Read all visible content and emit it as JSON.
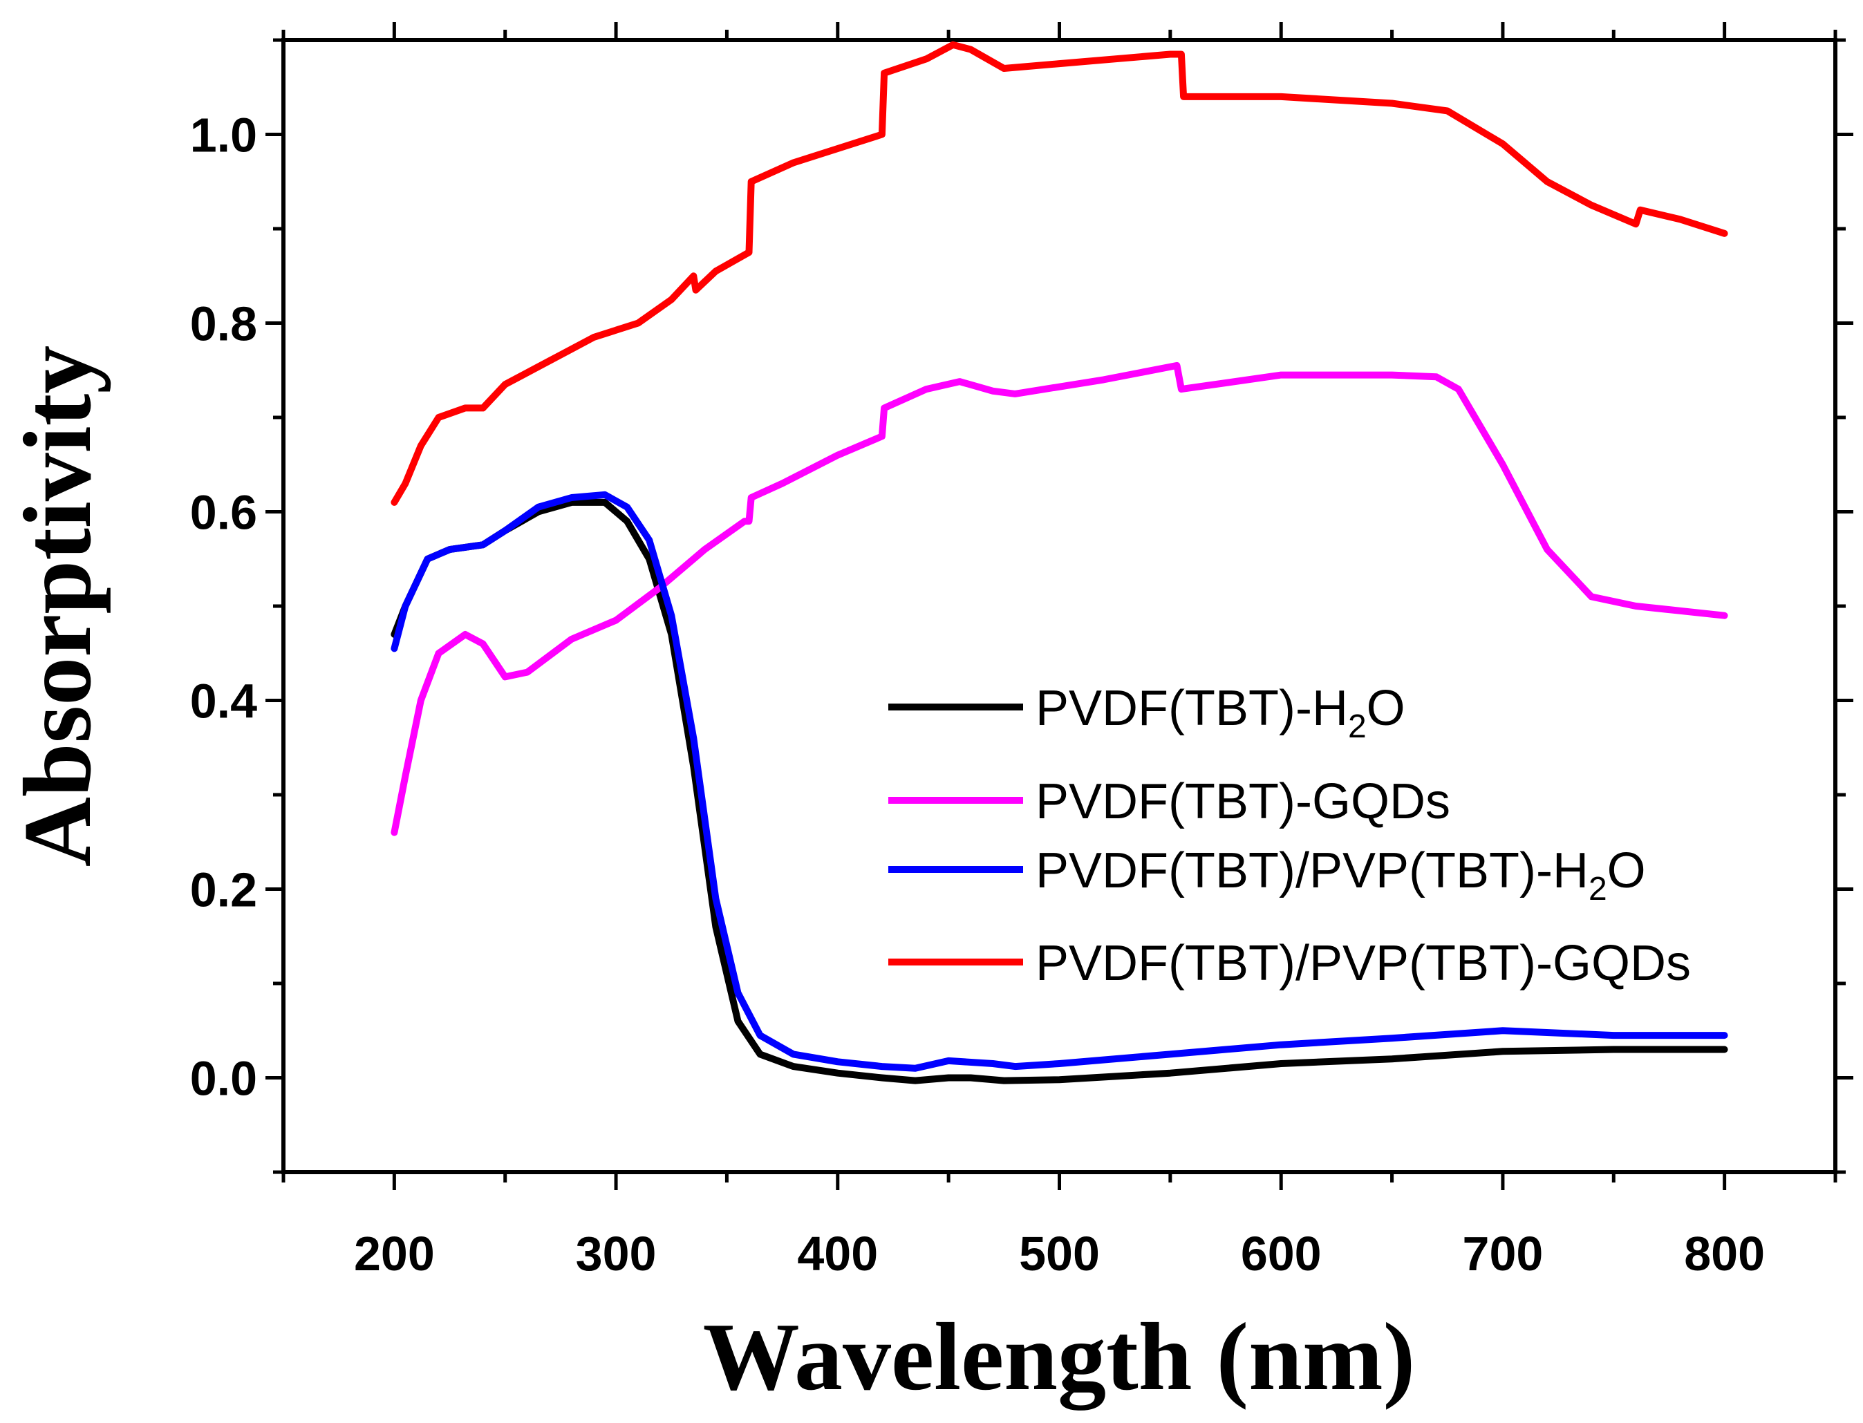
{
  "chart_data": {
    "type": "line",
    "xlabel": "Wavelength (nm)",
    "ylabel": "Absorptivity",
    "xlim": [
      150,
      850
    ],
    "ylim": [
      -0.1,
      1.1
    ],
    "xticks": [
      200,
      300,
      400,
      500,
      600,
      700,
      800
    ],
    "xtick_labels": [
      "200",
      "300",
      "400",
      "500",
      "600",
      "700",
      "800"
    ],
    "yticks": [
      0.0,
      0.2,
      0.4,
      0.6,
      0.8,
      1.0
    ],
    "ytick_labels": [
      "0.0",
      "0.2",
      "0.4",
      "0.6",
      "0.8",
      "1.0"
    ],
    "grid": false,
    "legend_position": "center-right",
    "series": [
      {
        "name": "PVDF(TBT)-H2O",
        "label_main": "PVDF(TBT)-H",
        "label_sub": "2",
        "label_tail": "O",
        "color": "#000000",
        "points": [
          [
            200,
            0.47
          ],
          [
            205,
            0.5
          ],
          [
            215,
            0.55
          ],
          [
            225,
            0.56
          ],
          [
            240,
            0.565
          ],
          [
            250,
            0.58
          ],
          [
            265,
            0.6
          ],
          [
            280,
            0.61
          ],
          [
            295,
            0.61
          ],
          [
            305,
            0.59
          ],
          [
            315,
            0.55
          ],
          [
            325,
            0.47
          ],
          [
            335,
            0.33
          ],
          [
            345,
            0.16
          ],
          [
            355,
            0.06
          ],
          [
            365,
            0.025
          ],
          [
            380,
            0.012
          ],
          [
            400,
            0.005
          ],
          [
            420,
            0.0
          ],
          [
            435,
            -0.003
          ],
          [
            450,
            0.0
          ],
          [
            460,
            0.0
          ],
          [
            475,
            -0.003
          ],
          [
            500,
            -0.002
          ],
          [
            550,
            0.005
          ],
          [
            600,
            0.015
          ],
          [
            650,
            0.02
          ],
          [
            700,
            0.028
          ],
          [
            750,
            0.03
          ],
          [
            800,
            0.03
          ]
        ]
      },
      {
        "name": "PVDF(TBT)-GQDs",
        "label_main": "PVDF(TBT)-GQDs",
        "label_sub": "",
        "label_tail": "",
        "color": "#ff00ff",
        "points": [
          [
            200,
            0.26
          ],
          [
            205,
            0.32
          ],
          [
            212,
            0.4
          ],
          [
            220,
            0.45
          ],
          [
            232,
            0.47
          ],
          [
            240,
            0.46
          ],
          [
            250,
            0.425
          ],
          [
            260,
            0.43
          ],
          [
            280,
            0.465
          ],
          [
            300,
            0.485
          ],
          [
            320,
            0.52
          ],
          [
            340,
            0.56
          ],
          [
            358,
            0.59
          ],
          [
            360,
            0.59
          ],
          [
            361,
            0.615
          ],
          [
            375,
            0.63
          ],
          [
            400,
            0.66
          ],
          [
            420,
            0.68
          ],
          [
            421,
            0.71
          ],
          [
            440,
            0.73
          ],
          [
            455,
            0.738
          ],
          [
            470,
            0.728
          ],
          [
            480,
            0.725
          ],
          [
            520,
            0.74
          ],
          [
            553,
            0.755
          ],
          [
            555,
            0.73
          ],
          [
            600,
            0.745
          ],
          [
            650,
            0.745
          ],
          [
            670,
            0.743
          ],
          [
            680,
            0.73
          ],
          [
            700,
            0.65
          ],
          [
            720,
            0.56
          ],
          [
            740,
            0.51
          ],
          [
            760,
            0.5
          ],
          [
            780,
            0.495
          ],
          [
            800,
            0.49
          ]
        ]
      },
      {
        "name": "PVDF(TBT)/PVP(TBT)-H2O",
        "label_main": "PVDF(TBT)/PVP(TBT)-H",
        "label_sub": "2",
        "label_tail": "O",
        "color": "#0000ff",
        "points": [
          [
            200,
            0.455
          ],
          [
            205,
            0.5
          ],
          [
            215,
            0.55
          ],
          [
            225,
            0.56
          ],
          [
            240,
            0.565
          ],
          [
            250,
            0.58
          ],
          [
            265,
            0.605
          ],
          [
            280,
            0.615
          ],
          [
            295,
            0.618
          ],
          [
            305,
            0.605
          ],
          [
            315,
            0.57
          ],
          [
            325,
            0.49
          ],
          [
            335,
            0.36
          ],
          [
            345,
            0.19
          ],
          [
            355,
            0.09
          ],
          [
            365,
            0.045
          ],
          [
            380,
            0.025
          ],
          [
            400,
            0.017
          ],
          [
            420,
            0.012
          ],
          [
            435,
            0.01
          ],
          [
            450,
            0.018
          ],
          [
            470,
            0.015
          ],
          [
            480,
            0.012
          ],
          [
            500,
            0.015
          ],
          [
            550,
            0.025
          ],
          [
            600,
            0.035
          ],
          [
            650,
            0.042
          ],
          [
            700,
            0.05
          ],
          [
            750,
            0.045
          ],
          [
            800,
            0.045
          ]
        ]
      },
      {
        "name": "PVDF(TBT)/PVP(TBT)-GQDs",
        "label_main": "PVDF(TBT)/PVP(TBT)-GQDs",
        "label_sub": "",
        "label_tail": "",
        "color": "#ff0000",
        "points": [
          [
            200,
            0.61
          ],
          [
            205,
            0.63
          ],
          [
            212,
            0.67
          ],
          [
            220,
            0.7
          ],
          [
            232,
            0.71
          ],
          [
            240,
            0.71
          ],
          [
            250,
            0.735
          ],
          [
            270,
            0.76
          ],
          [
            290,
            0.785
          ],
          [
            310,
            0.8
          ],
          [
            325,
            0.825
          ],
          [
            335,
            0.85
          ],
          [
            336,
            0.835
          ],
          [
            345,
            0.855
          ],
          [
            360,
            0.875
          ],
          [
            361,
            0.95
          ],
          [
            380,
            0.97
          ],
          [
            400,
            0.985
          ],
          [
            420,
            1.0
          ],
          [
            421,
            1.065
          ],
          [
            440,
            1.08
          ],
          [
            452,
            1.095
          ],
          [
            460,
            1.09
          ],
          [
            475,
            1.07
          ],
          [
            500,
            1.075
          ],
          [
            525,
            1.08
          ],
          [
            550,
            1.085
          ],
          [
            555,
            1.085
          ],
          [
            556,
            1.04
          ],
          [
            600,
            1.04
          ],
          [
            650,
            1.033
          ],
          [
            675,
            1.025
          ],
          [
            700,
            0.99
          ],
          [
            720,
            0.95
          ],
          [
            740,
            0.925
          ],
          [
            760,
            0.905
          ],
          [
            762,
            0.92
          ],
          [
            780,
            0.91
          ],
          [
            800,
            0.895
          ]
        ]
      }
    ]
  }
}
